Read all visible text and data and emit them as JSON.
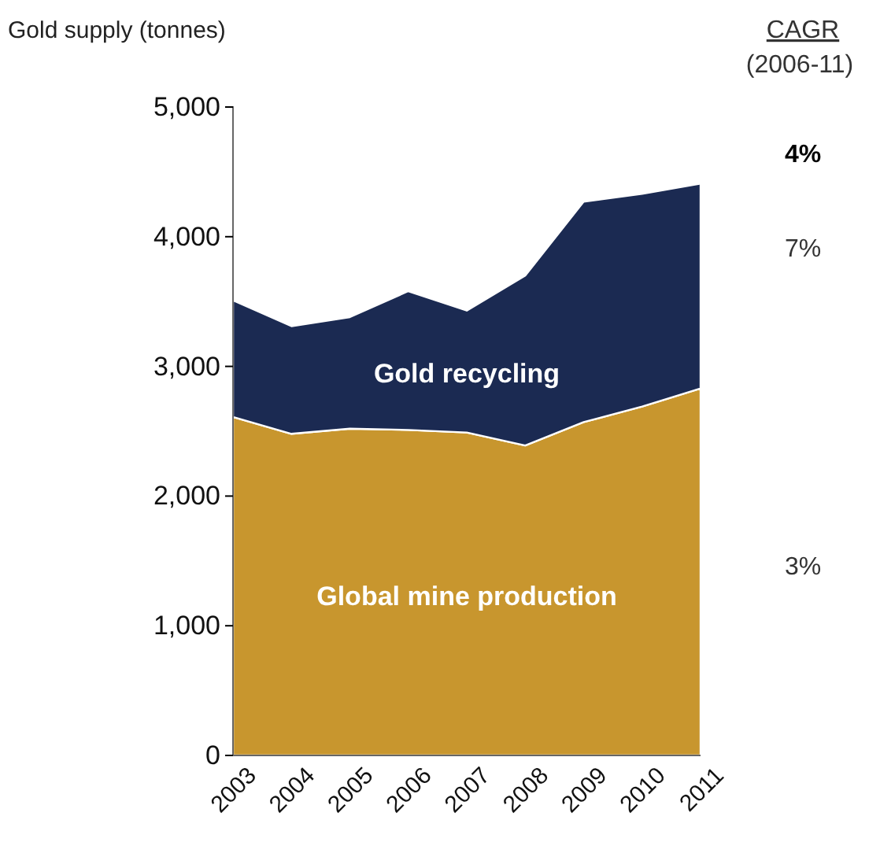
{
  "chart_data": {
    "type": "area",
    "stacked": true,
    "title": "Gold supply (tonnes)",
    "categories": [
      "2003",
      "2004",
      "2005",
      "2006",
      "2007",
      "2008",
      "2009",
      "2010",
      "2011"
    ],
    "series": [
      {
        "name": "Global mine production",
        "color": "#c8962e",
        "values": [
          2610,
          2480,
          2520,
          2510,
          2490,
          2390,
          2570,
          2690,
          2830
        ]
      },
      {
        "name": "Gold recycling",
        "color": "#1b2a52",
        "values": [
          900,
          830,
          860,
          1070,
          940,
          1310,
          1700,
          1640,
          1580
        ]
      }
    ],
    "ylim": [
      0,
      5000
    ],
    "yticks": [
      {
        "value": 0,
        "label": "0"
      },
      {
        "value": 1000,
        "label": "1,000"
      },
      {
        "value": 2000,
        "label": "2,000"
      },
      {
        "value": 3000,
        "label": "3,000"
      },
      {
        "value": 4000,
        "label": "4,000"
      },
      {
        "value": 5000,
        "label": "5,000"
      }
    ],
    "grid": false,
    "annotations": [
      "CAGR",
      "(2006-11)",
      "4%",
      "7%",
      "3%"
    ]
  }
}
